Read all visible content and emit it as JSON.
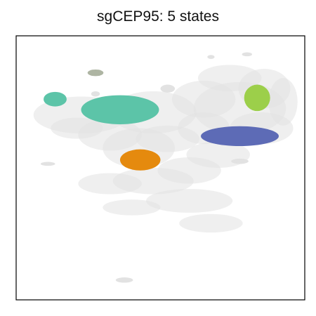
{
  "chart_data": {
    "type": "scatter",
    "title": "sgCEP95: 5 states",
    "xlabel": "",
    "ylabel": "",
    "axes_ticks": false,
    "grid": false,
    "legend": "none",
    "background_points_color": "#e2e2e2",
    "states": [
      {
        "color": "#aeb5a3",
        "cx": -0.45,
        "cy": 0.72,
        "rx": 0.055,
        "ry": 0.025
      },
      {
        "color": "#5cc4a8",
        "cx": -0.73,
        "cy": 0.52,
        "rx": 0.08,
        "ry": 0.055
      },
      {
        "color": "#5cc4a8",
        "cx": -0.28,
        "cy": 0.44,
        "rx": 0.27,
        "ry": 0.11
      },
      {
        "color": "#9ccf4a",
        "cx": 0.67,
        "cy": 0.53,
        "rx": 0.09,
        "ry": 0.1
      },
      {
        "color": "#5d6bb6",
        "cx": 0.55,
        "cy": 0.24,
        "rx": 0.27,
        "ry": 0.075
      },
      {
        "color": "#e58a0e",
        "cx": -0.14,
        "cy": 0.06,
        "rx": 0.14,
        "ry": 0.08
      }
    ]
  }
}
